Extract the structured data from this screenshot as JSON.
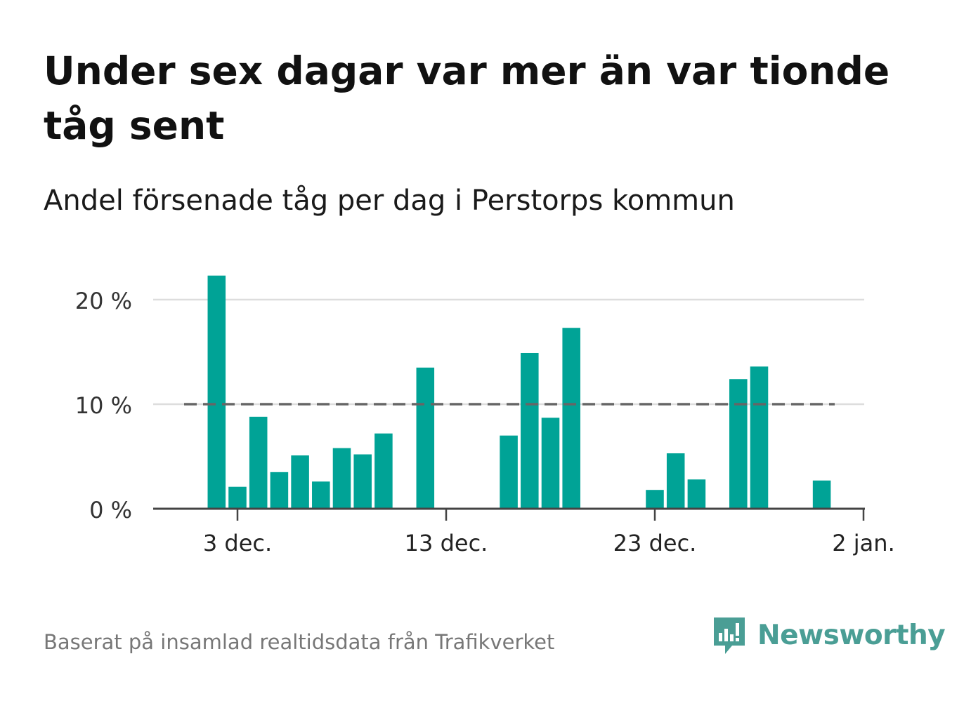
{
  "title": "Under sex dagar var mer än var tionde tåg sent",
  "subtitle": "Andel försenade tåg per dag i Perstorps kommun",
  "source": "Baserat på insamlad realtidsdata från Trafikverket",
  "brand": {
    "name": "Newsworthy",
    "logo_icon": "newsworthy-chart-bubble-icon"
  },
  "colors": {
    "bar": "#00a396",
    "reference_line": "#666666",
    "grid": "#dddddd",
    "axis": "#444444",
    "brand": "#4a9e95"
  },
  "chart_data": {
    "type": "bar",
    "x_unit": "date",
    "x": [
      "2023-12-02",
      "2023-12-03",
      "2023-12-04",
      "2023-12-05",
      "2023-12-06",
      "2023-12-07",
      "2023-12-08",
      "2023-12-09",
      "2023-12-10",
      "2023-12-11",
      "2023-12-12",
      "2023-12-13",
      "2023-12-14",
      "2023-12-15",
      "2023-12-16",
      "2023-12-17",
      "2023-12-18",
      "2023-12-19",
      "2023-12-20",
      "2023-12-21",
      "2023-12-22",
      "2023-12-23",
      "2023-12-24",
      "2023-12-25",
      "2023-12-26",
      "2023-12-27",
      "2023-12-28",
      "2023-12-29",
      "2023-12-30",
      "2023-12-31",
      "2024-01-01"
    ],
    "values": [
      22.3,
      2.1,
      8.8,
      3.5,
      5.1,
      2.6,
      5.8,
      5.2,
      7.2,
      0,
      13.5,
      0,
      0,
      0,
      7.0,
      14.9,
      8.7,
      17.3,
      0,
      0,
      0,
      1.8,
      5.3,
      2.8,
      0,
      12.4,
      13.6,
      0,
      0,
      2.7,
      0
    ],
    "ylim": [
      0,
      22.5
    ],
    "yticks": [
      0,
      10,
      20
    ],
    "ytick_labels": [
      "0 %",
      "10 %",
      "20 %"
    ],
    "xticks": [
      "2023-12-03",
      "2023-12-13",
      "2023-12-23",
      "2024-01-02"
    ],
    "xtick_labels": [
      "3 dec.",
      "13 dec.",
      "23 dec.",
      "2 jan."
    ],
    "reference_line": {
      "y": 10,
      "style": "dashed"
    },
    "grid": "horizontal",
    "legend": "none"
  }
}
